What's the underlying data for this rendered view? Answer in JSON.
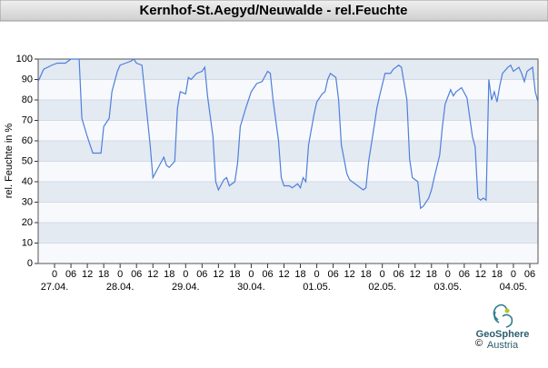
{
  "chart_data": {
    "type": "line",
    "title": "Kernhof-St.Aegyd/Neuwalde - rel.Feuchte",
    "y_label": "rel. Feuchte in %",
    "x": [
      -6,
      -4,
      -1,
      1,
      4,
      6,
      8,
      9,
      10,
      12,
      14,
      15,
      17,
      18,
      20,
      21,
      23,
      24,
      26,
      28,
      29,
      30,
      32,
      33,
      35,
      36,
      38,
      40,
      41,
      42,
      44,
      45,
      46,
      48,
      49,
      50,
      52,
      54,
      55,
      56,
      58,
      59,
      60,
      62,
      63,
      64,
      66,
      67,
      68,
      70,
      72,
      74,
      76,
      78,
      79,
      80,
      82,
      83,
      84,
      86,
      87,
      89,
      90,
      91,
      92,
      93,
      95,
      96,
      98,
      99,
      100,
      101,
      103,
      104,
      105,
      107,
      108,
      110,
      112,
      113,
      114,
      115,
      117,
      118,
      119,
      121,
      123,
      124,
      126,
      127,
      129,
      130,
      131,
      133,
      134,
      135,
      137,
      138,
      139,
      141,
      142,
      143,
      145,
      146,
      147,
      149,
      151,
      153,
      154,
      155,
      156,
      157,
      158,
      159,
      160,
      161,
      162,
      163,
      164,
      166,
      167,
      168,
      170,
      171,
      172,
      173,
      175,
      176,
      177
    ],
    "values": [
      89,
      95,
      97,
      98,
      98,
      100,
      100,
      100,
      71,
      62,
      54,
      54,
      54,
      67,
      71,
      84,
      94,
      97,
      98,
      99,
      100,
      98,
      97,
      84,
      58,
      42,
      47,
      52,
      48,
      47,
      50,
      76,
      84,
      83,
      91,
      90,
      93,
      94,
      96,
      82,
      62,
      40,
      36,
      41,
      42,
      38,
      40,
      49,
      67,
      76,
      84,
      88,
      89,
      94,
      93,
      80,
      60,
      42,
      38,
      38,
      37,
      39,
      37,
      42,
      40,
      58,
      73,
      79,
      83,
      84,
      90,
      93,
      91,
      80,
      58,
      44,
      41,
      39,
      37,
      36,
      37,
      50,
      67,
      76,
      82,
      93,
      93,
      95,
      97,
      96,
      80,
      51,
      42,
      40,
      27,
      28,
      32,
      36,
      42,
      53,
      67,
      78,
      85,
      82,
      84,
      86,
      81,
      62,
      57,
      32,
      31,
      32,
      31,
      90,
      80,
      84,
      79,
      87,
      93,
      96,
      97,
      94,
      96,
      93,
      89,
      94,
      96,
      84,
      79
    ],
    "color": "#4f7fdc",
    "xlim": [
      -6,
      177
    ],
    "ylim": [
      0,
      100
    ],
    "yticks": [
      0,
      10,
      20,
      30,
      40,
      50,
      60,
      70,
      80,
      90,
      100
    ],
    "xticks": [
      0,
      {
        "value": 6,
        "label": "06"
      },
      {
        "value": 12,
        "label": "12"
      },
      {
        "value": 18,
        "label": "18"
      },
      {
        "value": 24,
        "label": "0"
      },
      {
        "value": 30,
        "label": "06"
      },
      {
        "value": 36,
        "label": "12"
      },
      {
        "value": 42,
        "label": "18"
      },
      {
        "value": 48,
        "label": "0"
      },
      {
        "value": 54,
        "label": "06"
      },
      {
        "value": 60,
        "label": "12"
      },
      {
        "value": 66,
        "label": "18"
      },
      {
        "value": 72,
        "label": "0"
      },
      {
        "value": 78,
        "label": "06"
      },
      {
        "value": 84,
        "label": "12"
      },
      {
        "value": 90,
        "label": "18"
      },
      {
        "value": 96,
        "label": "0"
      },
      {
        "value": 102,
        "label": "06"
      },
      {
        "value": 108,
        "label": "12"
      },
      {
        "value": 114,
        "label": "18"
      },
      {
        "value": 120,
        "label": "0"
      },
      {
        "value": 126,
        "label": "06"
      },
      {
        "value": 132,
        "label": "12"
      },
      {
        "value": 138,
        "label": "18"
      },
      {
        "value": 144,
        "label": "0"
      },
      {
        "value": 150,
        "label": "06"
      },
      {
        "value": 156,
        "label": "12"
      },
      {
        "value": 162,
        "label": "18"
      },
      {
        "value": 168,
        "label": "0"
      },
      {
        "value": 174,
        "label": "06"
      }
    ],
    "date_labels": [
      {
        "value": 0,
        "label": "27.04."
      },
      {
        "value": 24,
        "label": "28.04."
      },
      {
        "value": 48,
        "label": "29.04."
      },
      {
        "value": 72,
        "label": "30.04."
      },
      {
        "value": 96,
        "label": "01.05."
      },
      {
        "value": 120,
        "label": "02.05."
      },
      {
        "value": 144,
        "label": "03.05."
      },
      {
        "value": 168,
        "label": "04.05."
      }
    ],
    "grid": true
  },
  "logo": {
    "name": "GeoSphere",
    "sub": "Austria",
    "copyright": "©"
  }
}
